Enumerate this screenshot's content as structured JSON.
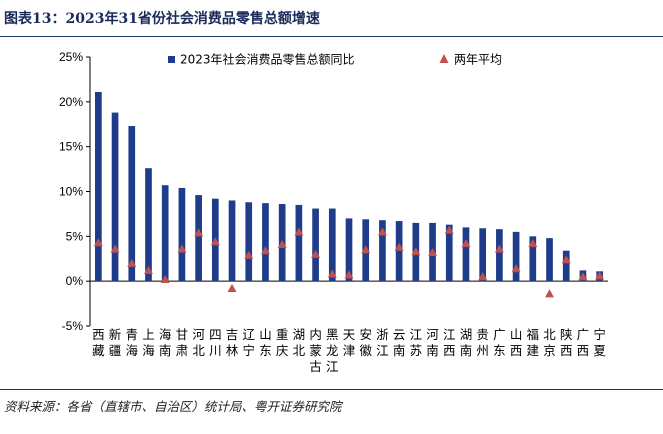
{
  "title": "图表13：2023年31省份社会消费品零售总额增速",
  "source": "资料来源：各省（直辖市、自治区）统计局、粤开证券研究院",
  "colors": {
    "bar": "#1f3c8a",
    "marker": "#c0504d",
    "title": "#1a2a5a"
  },
  "chart_data": {
    "type": "bar",
    "title": "2023年31省份社会消费品零售总额增速",
    "xlabel": "",
    "ylabel": "",
    "ylim": [
      -5,
      25
    ],
    "yticks": [
      -5,
      0,
      5,
      10,
      15,
      20,
      25
    ],
    "ytick_labels": [
      "-5%",
      "0%",
      "5%",
      "10%",
      "15%",
      "20%",
      "25%"
    ],
    "legend_position": "top",
    "categories": [
      "西藏",
      "新疆",
      "青海",
      "上海",
      "海南",
      "甘肃",
      "河北",
      "四川",
      "吉林",
      "辽宁",
      "山东",
      "重庆",
      "湖北",
      "内蒙古",
      "黑龙江",
      "天津",
      "安徽",
      "浙江",
      "云南",
      "江苏",
      "河南",
      "江西",
      "湖南",
      "贵州",
      "广东",
      "山西",
      "福建",
      "北京",
      "陕西",
      "广西",
      "宁夏"
    ],
    "series": [
      {
        "name": "2023年社会消费品零售总额同比",
        "kind": "bar",
        "values": [
          21.1,
          18.8,
          17.3,
          12.6,
          10.7,
          10.4,
          9.6,
          9.2,
          9.0,
          8.8,
          8.7,
          8.6,
          8.5,
          8.1,
          8.1,
          7.0,
          6.9,
          6.8,
          6.7,
          6.5,
          6.5,
          6.3,
          6.0,
          5.9,
          5.8,
          5.5,
          5.0,
          4.8,
          3.4,
          1.2,
          1.1
        ]
      },
      {
        "name": "两年平均",
        "kind": "marker",
        "values": [
          4.3,
          3.6,
          2.0,
          1.2,
          0.2,
          3.6,
          5.4,
          4.4,
          -0.8,
          2.9,
          3.4,
          4.1,
          5.5,
          3.0,
          0.8,
          0.7,
          3.5,
          5.5,
          3.8,
          3.3,
          3.2,
          5.7,
          4.2,
          0.5,
          3.6,
          1.4,
          4.2,
          -1.4,
          2.4,
          0.5,
          0.6
        ]
      }
    ]
  }
}
